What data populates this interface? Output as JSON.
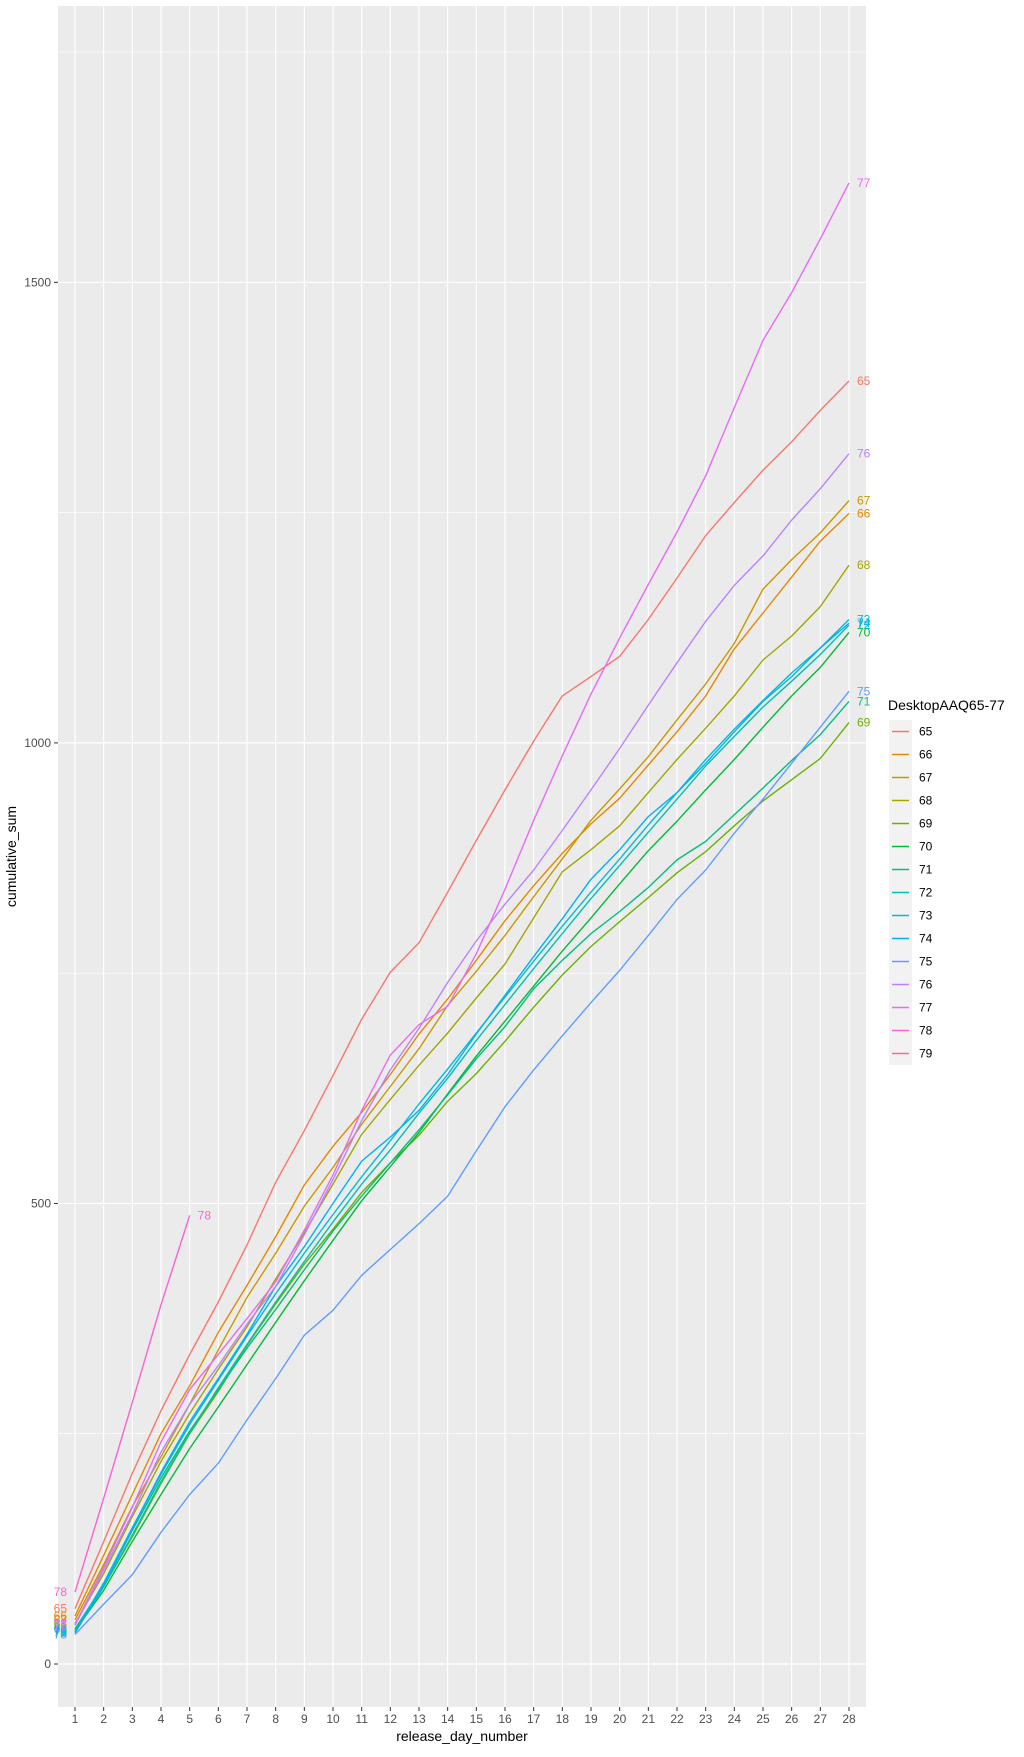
{
  "chart_data": {
    "type": "line",
    "xlabel": "release_day_number",
    "ylabel": "cumulative_sum",
    "xlim": [
      1,
      28
    ],
    "ylim": [
      0,
      1800
    ],
    "x_ticks": [
      1,
      2,
      3,
      4,
      5,
      6,
      7,
      8,
      9,
      10,
      11,
      12,
      13,
      14,
      15,
      16,
      17,
      18,
      19,
      20,
      21,
      22,
      23,
      24,
      25,
      26,
      27,
      28
    ],
    "y_ticks": [
      0,
      500,
      1000,
      1500
    ],
    "y_tick_labels": [
      "0",
      "500",
      "1000",
      "1500"
    ],
    "grid": true,
    "legend": {
      "title": "DesktopAAQ65-77",
      "position": "right"
    },
    "end_labels": true,
    "series": [
      {
        "name": "65",
        "color": "#F8766D",
        "values": [
          60,
          133,
          207,
          275,
          336,
          393,
          455,
          523,
          579,
          639,
          700,
          751,
          783,
          838,
          894,
          949,
          1002,
          1051,
          1072,
          1094,
          1134,
          1179,
          1225,
          1261,
          1296,
          1327,
          1361,
          1393
        ]
      },
      {
        "name": "66",
        "color": "#E58700",
        "values": [
          52,
          118,
          184,
          250,
          302,
          360,
          411,
          464,
          520,
          562,
          599,
          640,
          684,
          722,
          764,
          807,
          845,
          880,
          912,
          940,
          976,
          1012,
          1051,
          1102,
          1141,
          1180,
          1219,
          1249
        ]
      },
      {
        "name": "67",
        "color": "#C99800",
        "values": [
          48,
          108,
          171,
          225,
          282,
          341,
          398,
          446,
          497,
          539,
          586,
          627,
          668,
          715,
          752,
          791,
          833,
          874,
          916,
          950,
          985,
          1025,
          1064,
          1108,
          1167,
          1199,
          1228,
          1263
        ]
      },
      {
        "name": "68",
        "color": "#A3A500",
        "values": [
          44,
          98,
          160,
          220,
          272,
          320,
          366,
          418,
          468,
          521,
          575,
          613,
          650,
          685,
          723,
          760,
          810,
          860,
          884,
          910,
          946,
          982,
          1016,
          1051,
          1090,
          1116,
          1148,
          1193
        ]
      },
      {
        "name": "69",
        "color": "#6BB100",
        "values": [
          38,
          84,
          138,
          196,
          250,
          296,
          346,
          391,
          434,
          472,
          512,
          544,
          574,
          611,
          641,
          676,
          713,
          748,
          779,
          806,
          832,
          859,
          882,
          910,
          937,
          960,
          983,
          1022
        ]
      },
      {
        "name": "70",
        "color": "#00BA38",
        "values": [
          36,
          80,
          133,
          184,
          234,
          279,
          325,
          371,
          416,
          460,
          503,
          540,
          577,
          619,
          660,
          698,
          736,
          774,
          810,
          847,
          883,
          915,
          949,
          982,
          1017,
          1051,
          1082,
          1120
        ]
      },
      {
        "name": "71",
        "color": "#00BF7D",
        "values": [
          38,
          86,
          145,
          202,
          253,
          298,
          343,
          385,
          428,
          470,
          508,
          544,
          580,
          618,
          657,
          692,
          733,
          764,
          793,
          817,
          843,
          873,
          893,
          922,
          951,
          981,
          1009,
          1045
        ]
      },
      {
        "name": "72",
        "color": "#00C0AF",
        "values": [
          34,
          84,
          140,
          198,
          251,
          300,
          347,
          393,
          437,
          480,
          521,
          558,
          598,
          636,
          677,
          716,
          755,
          793,
          831,
          867,
          903,
          939,
          975,
          1007,
          1039,
          1067,
          1096,
          1128
        ]
      },
      {
        "name": "73",
        "color": "#00BCD8",
        "values": [
          35,
          88,
          148,
          206,
          260,
          308,
          356,
          402,
          446,
          488,
          529,
          568,
          608,
          646,
          685,
          724,
          763,
          801,
          838,
          874,
          911,
          946,
          982,
          1015,
          1046,
          1076,
          1103,
          1134
        ]
      },
      {
        "name": "74",
        "color": "#00B0F6",
        "values": [
          34,
          86,
          147,
          208,
          263,
          310,
          358,
          410,
          453,
          500,
          546,
          572,
          601,
          640,
          684,
          726,
          768,
          809,
          852,
          884,
          920,
          946,
          978,
          1012,
          1045,
          1072,
          1103,
          1130
        ]
      },
      {
        "name": "75",
        "color": "#619CFF",
        "values": [
          32,
          65,
          97,
          143,
          184,
          218,
          265,
          310,
          357,
          384,
          422,
          450,
          478,
          508,
          557,
          605,
          645,
          682,
          718,
          753,
          791,
          830,
          862,
          902,
          939,
          978,
          1017,
          1056
        ]
      },
      {
        "name": "76",
        "color": "#B983FF",
        "values": [
          42,
          102,
          163,
          230,
          282,
          324,
          369,
          410,
          466,
          526,
          590,
          645,
          690,
          740,
          785,
          825,
          862,
          905,
          949,
          994,
          1041,
          1087,
          1132,
          1171,
          1203,
          1242,
          1276,
          1314
        ]
      },
      {
        "name": "77",
        "color": "#E76BF3",
        "values": [
          43,
          105,
          170,
          241,
          298,
          336,
          375,
          415,
          471,
          531,
          601,
          661,
          694,
          714,
          771,
          841,
          916,
          986,
          1053,
          1114,
          1172,
          1229,
          1290,
          1364,
          1437,
          1489,
          1547,
          1608
        ]
      },
      {
        "name": "78",
        "color": "#FD61D1",
        "values": [
          78,
          180,
          284,
          390,
          487
        ]
      },
      {
        "name": "79",
        "color": "#FF67A4",
        "values": []
      }
    ]
  }
}
